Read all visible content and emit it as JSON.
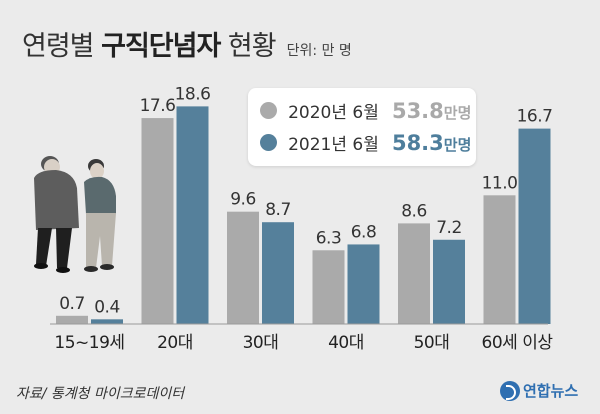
{
  "header": {
    "title_part1": "연령별 ",
    "title_part2": "구직단념자",
    "title_part3": " 현황",
    "unit": "단위: 만 명"
  },
  "legend": {
    "items": [
      {
        "label": "2020년 6월",
        "total": "53.8",
        "unit": "만명",
        "color": "#aaaaaa",
        "total_color": "#a9a9a9"
      },
      {
        "label": "2021년 6월",
        "total": "58.3",
        "unit": "만명",
        "color": "#55809b",
        "total_color": "#4e7e9c"
      }
    ]
  },
  "footer": {
    "source": "자료/ 통계청 마이크로데이터",
    "logo_text": "연합뉴스"
  },
  "illustration": {
    "icon": "elderly-men-icon"
  },
  "chart_data": {
    "type": "bar",
    "categories": [
      "15~19세",
      "20대",
      "30대",
      "40대",
      "50대",
      "60세 이상"
    ],
    "series": [
      {
        "name": "2020년 6월",
        "values": [
          0.7,
          17.6,
          9.6,
          6.3,
          8.6,
          11.0
        ],
        "labels": [
          "0.7",
          "17.6",
          "9.6",
          "6.3",
          "8.6",
          "11.0"
        ],
        "color": "#aaaaaa"
      },
      {
        "name": "2021년 6월",
        "values": [
          0.4,
          18.6,
          8.7,
          6.8,
          7.2,
          16.7
        ],
        "labels": [
          "0.4",
          "18.6",
          "8.7",
          "6.8",
          "7.2",
          "16.7"
        ],
        "color": "#55809b"
      }
    ],
    "ylim": [
      0,
      20
    ],
    "grid": false,
    "legend": "top-center"
  }
}
